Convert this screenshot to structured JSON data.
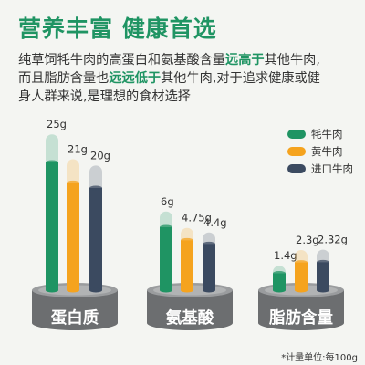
{
  "headline": "营养丰富 健康首选",
  "description": {
    "line1_a": "纯草饲牦牛肉的高蛋白和氨基酸含量",
    "line1_hl": "远高于",
    "line1_b": "其他牛肉,",
    "line2_a": "而且脂肪含量也",
    "line2_hl": "远远低于",
    "line2_b": "其他牛肉,对于追求健康或健",
    "line3": "身人群来说,是理想的食材选择"
  },
  "footnote": "*计量单位:每100g",
  "colors": {
    "yak": "#1f9463",
    "yellow": "#f5a31e",
    "imported": "#3b4a60",
    "highlight": "#1f9463"
  },
  "chart_data": {
    "type": "bar",
    "categories": [
      "蛋白质",
      "氨基酸",
      "脂肪含量"
    ],
    "series": [
      {
        "name": "牦牛肉",
        "values": [
          25,
          6,
          1.4
        ],
        "labels": [
          "25g",
          "6g",
          "1.4g"
        ]
      },
      {
        "name": "黄牛肉",
        "values": [
          21,
          4.75,
          2.3
        ],
        "labels": [
          "21g",
          "4.75g",
          "2.3g"
        ]
      },
      {
        "name": "进口牛肉",
        "values": [
          20,
          4.4,
          2.32
        ],
        "labels": [
          "20g",
          "4.4g",
          "2.32g"
        ]
      }
    ],
    "legend_position": "top-right"
  }
}
